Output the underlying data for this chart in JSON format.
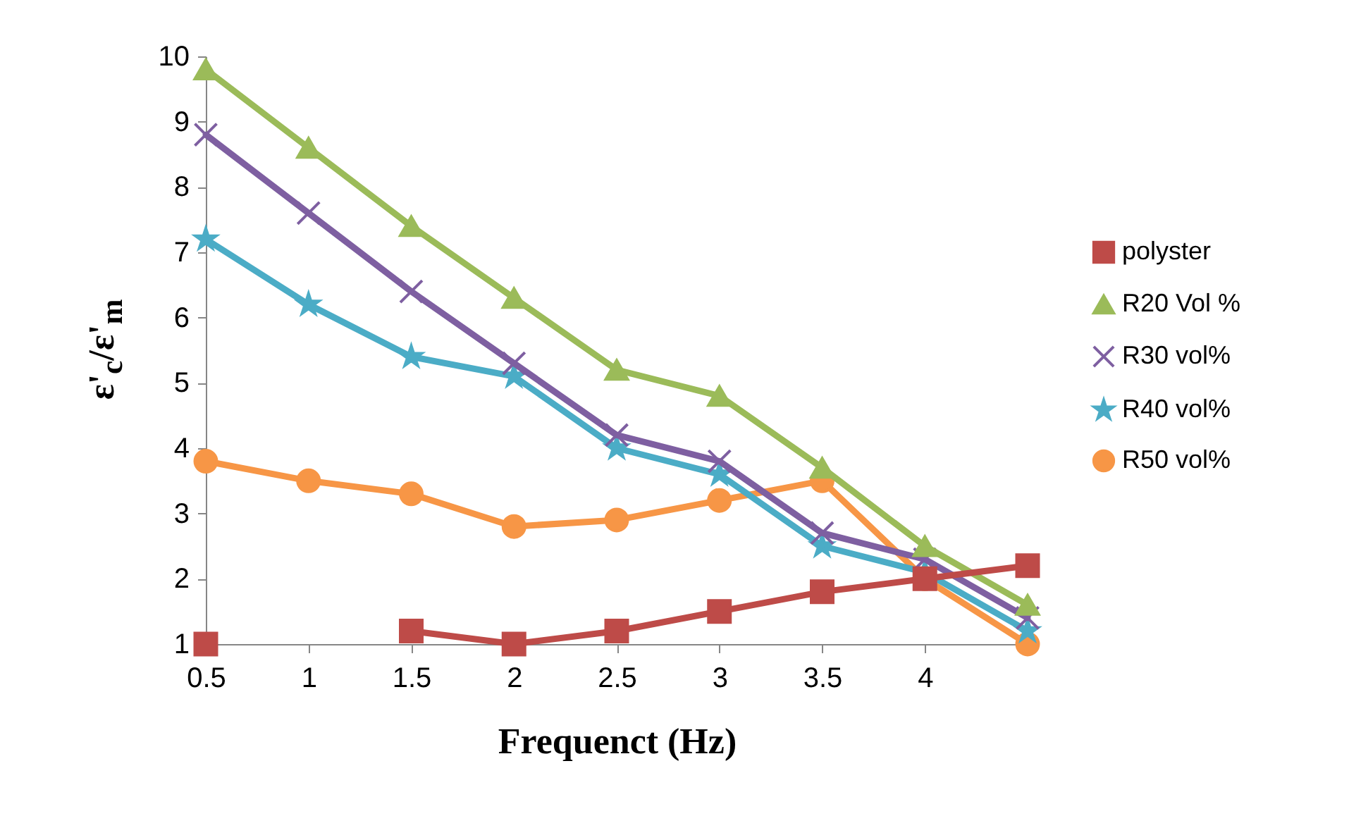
{
  "chart_data": {
    "type": "line",
    "xlabel": "Frequenct (Hz)",
    "ylabel": "ε'$_{c}$/ε'$_{m}$",
    "categories": [
      "0.5",
      "1",
      "1.5",
      "2",
      "2.5",
      "3",
      "3.5",
      "4",
      null
    ],
    "ylim": [
      1,
      10
    ],
    "yticks": [
      1,
      2,
      3,
      4,
      5,
      6,
      7,
      8,
      9,
      10
    ],
    "grid": false,
    "legend": "right",
    "series": [
      {
        "name": "polyster",
        "color": "#be4b48",
        "marker": "square",
        "values": [
          1,
          null,
          1.2,
          1,
          1.2,
          1.5,
          1.8,
          2,
          2.2
        ]
      },
      {
        "name": "R20 Vol %",
        "color": "#9bbb59",
        "marker": "triangle",
        "values": [
          9.8,
          8.6,
          7.4,
          6.3,
          5.2,
          4.8,
          3.7,
          2.5,
          1.6
        ]
      },
      {
        "name": "R30 vol%",
        "color": "#7e5fa1",
        "marker": "cross",
        "values": [
          8.8,
          7.6,
          6.4,
          5.3,
          4.2,
          3.8,
          2.7,
          2.3,
          1.4
        ]
      },
      {
        "name": "R40 vol%",
        "color": "#4bacc6",
        "marker": "star",
        "values": [
          7.2,
          6.2,
          5.4,
          5.1,
          4.0,
          3.6,
          2.5,
          2.1,
          1.2
        ]
      },
      {
        "name": "R50 vol%",
        "color": "#f79646",
        "marker": "circle",
        "values": [
          3.8,
          3.5,
          3.3,
          2.8,
          2.9,
          3.2,
          3.5,
          2.0,
          1.0
        ]
      }
    ]
  }
}
